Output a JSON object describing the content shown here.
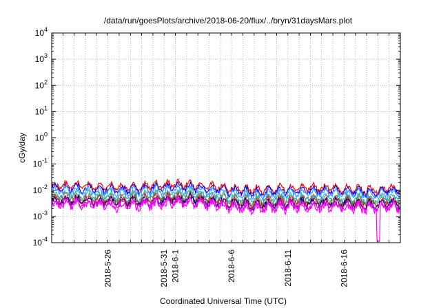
{
  "chart_data": {
    "type": "line",
    "title": "/data/run/goesPlots/archive/2018-06-20/flux/../bryn/31daysMars.plot",
    "xlabel": "Coordinated Universal Time (UTC)",
    "ylabel": "cGy/day",
    "yscale": "log",
    "ylim": [
      0.0001,
      10000
    ],
    "xlim": [
      "2018-05-21",
      "2018-06-21"
    ],
    "grid": true,
    "x_ticks": [
      "2018-5-26",
      "2018-5-31",
      "2018-6-1",
      "2018-6-6",
      "2018-6-11",
      "2018-6-16"
    ],
    "y_ticks": [
      {
        "base": "10",
        "exp": "-4"
      },
      {
        "base": "10",
        "exp": "-3"
      },
      {
        "base": "10",
        "exp": "-2"
      },
      {
        "base": "10",
        "exp": "-1"
      },
      {
        "base": "10",
        "exp": "0"
      },
      {
        "base": "10",
        "exp": "1"
      },
      {
        "base": "10",
        "exp": "2"
      },
      {
        "base": "10",
        "exp": "3"
      },
      {
        "base": "10",
        "exp": "4"
      }
    ],
    "series": [
      {
        "color": "#ff0000",
        "level": 0.013,
        "noise": 0.16
      },
      {
        "color": "#0000ff",
        "level": 0.0105,
        "noise": 0.17
      },
      {
        "color": "#3399ff",
        "level": 0.0085,
        "noise": 0.17
      },
      {
        "color": "#20b2aa",
        "level": 0.0058,
        "noise": 0.2
      },
      {
        "color": "#808080",
        "level": 0.0048,
        "noise": 0.2
      },
      {
        "color": "#cc2222",
        "level": 0.004,
        "noise": 0.22
      },
      {
        "color": "#000080",
        "level": 0.0035,
        "noise": 0.22
      },
      {
        "color": "#cc00cc",
        "level": 0.0029,
        "noise": 0.25
      },
      {
        "color": "#ff00ff",
        "level": 0.0025,
        "noise": 0.3
      }
    ]
  }
}
